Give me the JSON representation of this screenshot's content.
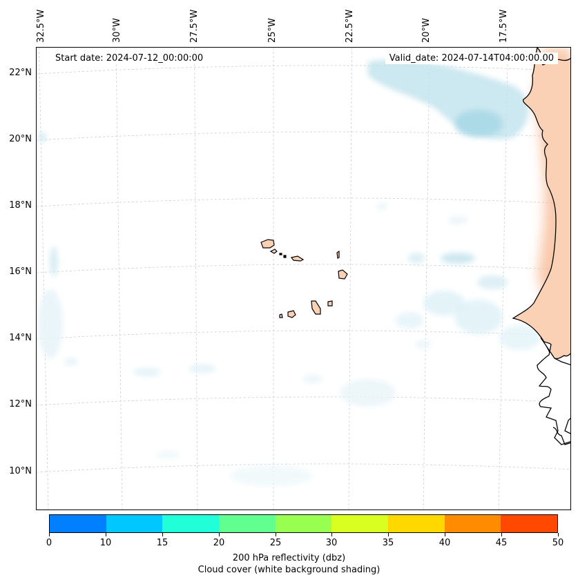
{
  "map": {
    "start_date": "Start date: 2024-07-12_00:00:00",
    "valid_date": "Valid_date: 2024-07-14T04:00:00.00",
    "lon_labels": [
      "32.5°W",
      "30°W",
      "27.5°W",
      "25°W",
      "22.5°W",
      "20°W",
      "17.5°W"
    ],
    "lat_labels": [
      "22°N",
      "20°N",
      "18°N",
      "16°N",
      "14°N",
      "12°N",
      "10°N"
    ],
    "extent": {
      "lon_west": -32.5,
      "lon_east": -15.5,
      "lat_south": 9.0,
      "lat_north": 22.6
    }
  },
  "colorbar": {
    "label_line1": "200 hPa reflectivity (dbz)",
    "label_line2": "Cloud cover (white background shading)",
    "ticks": [
      "0",
      "10",
      "15",
      "20",
      "25",
      "30",
      "35",
      "40",
      "45",
      "50"
    ],
    "colors": [
      "#0080ff",
      "#00c8ff",
      "#20ffd8",
      "#60ff90",
      "#98ff50",
      "#d8ff20",
      "#ffd800",
      "#ff8c00",
      "#ff4800"
    ]
  },
  "colors": {
    "cloud_shading": "#a8d8e6",
    "land_shading": "#f6b48a",
    "coastline": "#000000",
    "gridline": "#cccccc"
  }
}
